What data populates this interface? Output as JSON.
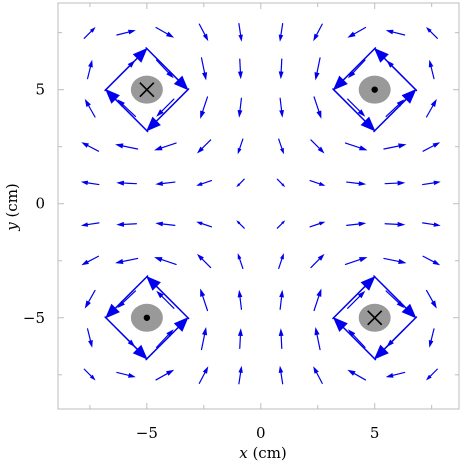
{
  "chart_data": {
    "type": "vector-field",
    "title": "",
    "xlabel_var": "x",
    "xlabel_unit": " (cm)",
    "ylabel_var": "y",
    "ylabel_unit": " (cm)",
    "xlim": [
      -8.9,
      8.7
    ],
    "ylim": [
      -9.0,
      8.8
    ],
    "xticks": [
      -5,
      0,
      5
    ],
    "yticks": [
      -5,
      0,
      5
    ],
    "xtick_labels": [
      "−5",
      "0",
      "5"
    ],
    "ytick_labels": [
      "−5",
      "0",
      "5"
    ],
    "minor_tick_step": 2.5,
    "grid": false,
    "arrow_color": "#0000ee",
    "conductor_color": "#999999",
    "grid_points_x": [
      -7.5,
      -5.9,
      -4.2,
      -2.5,
      -0.9,
      0.9,
      2.5,
      4.2,
      5.9,
      7.5
    ],
    "grid_points_y": [
      -7.5,
      -5.9,
      -4.2,
      -2.5,
      -0.9,
      0.9,
      2.5,
      4.2,
      5.9,
      7.5
    ],
    "currents": [
      {
        "x": -5,
        "y": 5,
        "direction": "into-page",
        "symbol": "✕",
        "strength": -1
      },
      {
        "x": 5,
        "y": 5,
        "direction": "out-of-page",
        "symbol": "•",
        "strength": 1
      },
      {
        "x": -5,
        "y": -5,
        "direction": "out-of-page",
        "symbol": "•",
        "strength": 1
      },
      {
        "x": 5,
        "y": -5,
        "direction": "into-page",
        "symbol": "✕",
        "strength": -1
      }
    ]
  }
}
